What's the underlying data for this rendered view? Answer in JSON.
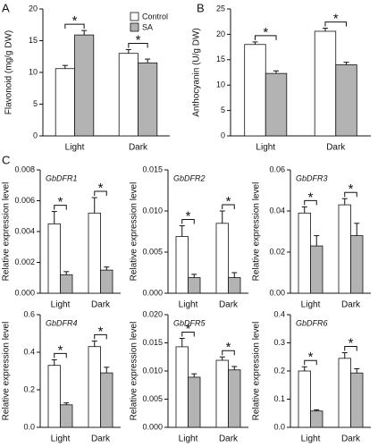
{
  "chart_data": [
    {
      "type": "bar",
      "panel": "A",
      "ylabel": "Flavonoid (mg/g DW)",
      "categories": [
        "Light",
        "Dark"
      ],
      "series": [
        {
          "name": "Control",
          "color": "#ffffff",
          "values": [
            10.6,
            13.0
          ],
          "errors": [
            0.5,
            0.6
          ]
        },
        {
          "name": "SA",
          "color": "#b3b3b3",
          "values": [
            15.9,
            11.5
          ],
          "errors": [
            0.7,
            0.6
          ]
        }
      ],
      "ylim": [
        0,
        20
      ],
      "yticks": [
        0,
        5,
        10,
        15,
        20
      ],
      "annotations": [
        "*",
        "*"
      ],
      "legend": "upper right"
    },
    {
      "type": "bar",
      "panel": "B",
      "ylabel": "Anthocyanin (U/g DW)",
      "categories": [
        "Light",
        "Dark"
      ],
      "series": [
        {
          "color": "#ffffff",
          "values": [
            18.0,
            20.6
          ],
          "errors": [
            0.5,
            0.6
          ]
        },
        {
          "color": "#b3b3b3",
          "values": [
            12.3,
            14.0
          ],
          "errors": [
            0.5,
            0.5
          ]
        }
      ],
      "ylim": [
        0,
        25
      ],
      "yticks": [
        0,
        5,
        10,
        15,
        20,
        25
      ],
      "annotations": [
        "*",
        "*"
      ]
    },
    {
      "type": "bar",
      "panel": "C",
      "title": "GbDFR1",
      "ylabel": "Relative expression level",
      "categories": [
        "Light",
        "Dark"
      ],
      "series": [
        {
          "color": "#ffffff",
          "values": [
            0.0045,
            0.0052
          ],
          "errors": [
            0.0008,
            0.001
          ]
        },
        {
          "color": "#b3b3b3",
          "values": [
            0.0012,
            0.0015
          ],
          "errors": [
            0.0002,
            0.0002
          ]
        }
      ],
      "ylim": [
        0,
        0.008
      ],
      "yticks": [
        {
          "value": 0,
          "label": "0.000"
        },
        0.002,
        0.004,
        0.006,
        0.008
      ],
      "annotations": [
        "*",
        "*"
      ]
    },
    {
      "type": "bar",
      "title": "GbDFR2",
      "ylabel": "Relative expression level",
      "categories": [
        "Light",
        "Dark"
      ],
      "series": [
        {
          "color": "#ffffff",
          "values": [
            0.0069,
            0.0085
          ],
          "errors": [
            0.0013,
            0.0015
          ]
        },
        {
          "color": "#b3b3b3",
          "values": [
            0.0019,
            0.0019
          ],
          "errors": [
            0.0004,
            0.0006
          ]
        }
      ],
      "ylim": [
        0,
        0.015
      ],
      "yticks": [
        {
          "value": 0,
          "label": "0.000"
        },
        0.005,
        {
          "value": 0.01,
          "label": "0.010"
        },
        0.015
      ],
      "annotations": [
        "*",
        "*"
      ]
    },
    {
      "type": "bar",
      "title": "GbDFR3",
      "ylabel": "Relative expression level",
      "categories": [
        "Light",
        "Dark"
      ],
      "series": [
        {
          "color": "#ffffff",
          "values": [
            0.039,
            0.043
          ],
          "errors": [
            0.003,
            0.003
          ]
        },
        {
          "color": "#b3b3b3",
          "values": [
            0.023,
            0.028
          ],
          "errors": [
            0.005,
            0.006
          ]
        }
      ],
      "ylim": [
        0,
        0.06
      ],
      "yticks": [
        {
          "value": 0,
          "label": "0.00"
        },
        0.02,
        0.04,
        0.06
      ],
      "annotations": [
        "*",
        "*"
      ]
    },
    {
      "type": "bar",
      "title": "GbDFR4",
      "ylabel": "Relative expression level",
      "categories": [
        "Light",
        "Dark"
      ],
      "series": [
        {
          "color": "#ffffff",
          "values": [
            0.33,
            0.43
          ],
          "errors": [
            0.03,
            0.03
          ]
        },
        {
          "color": "#b3b3b3",
          "values": [
            0.12,
            0.29
          ],
          "errors": [
            0.01,
            0.03
          ]
        }
      ],
      "ylim": [
        0,
        0.6
      ],
      "yticks": [
        {
          "value": 0,
          "label": "0.0"
        },
        0.2,
        0.4,
        0.6
      ],
      "annotations": [
        "*",
        "*"
      ]
    },
    {
      "type": "bar",
      "title": "GbDFR5",
      "ylabel": "Relative expression level",
      "categories": [
        "Light",
        "Dark"
      ],
      "series": [
        {
          "color": "#ffffff",
          "values": [
            0.0143,
            0.0119
          ],
          "errors": [
            0.0015,
            0.0006
          ]
        },
        {
          "color": "#b3b3b3",
          "values": [
            0.0089,
            0.0102
          ],
          "errors": [
            0.0006,
            0.0006
          ]
        }
      ],
      "ylim": [
        0,
        0.02
      ],
      "yticks": [
        {
          "value": 0,
          "label": "0.000"
        },
        0.005,
        {
          "value": 0.01,
          "label": "0.010"
        },
        0.015,
        {
          "value": 0.02,
          "label": "0.020"
        }
      ],
      "annotations": [
        "*",
        "*"
      ]
    },
    {
      "type": "bar",
      "title": "GbDFR6",
      "ylabel": "Relative expression level",
      "categories": [
        "Light",
        "Dark"
      ],
      "series": [
        {
          "color": "#ffffff",
          "values": [
            0.2,
            0.245
          ],
          "errors": [
            0.015,
            0.02
          ]
        },
        {
          "color": "#b3b3b3",
          "values": [
            0.058,
            0.193
          ],
          "errors": [
            0.004,
            0.015
          ]
        }
      ],
      "ylim": [
        0,
        0.4
      ],
      "yticks": [
        {
          "value": 0,
          "label": "0.0"
        },
        0.1,
        0.2,
        0.3,
        0.4
      ],
      "annotations": [
        "*",
        "*"
      ]
    }
  ]
}
